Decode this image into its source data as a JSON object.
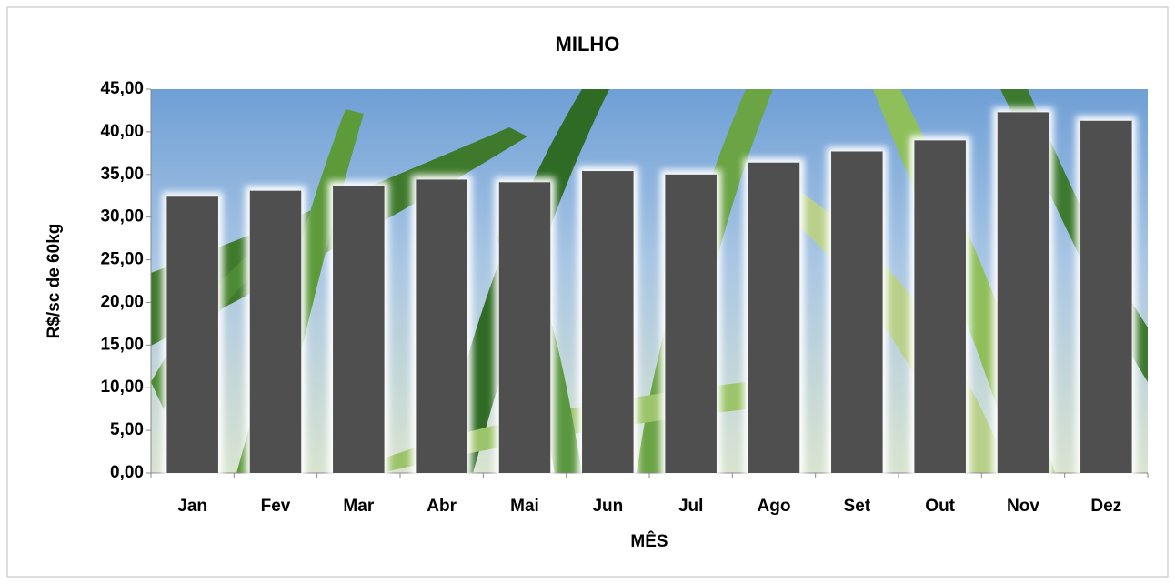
{
  "chart_data": {
    "type": "bar",
    "title": "MILHO",
    "x_label": "MÊS",
    "y_label": "R$/sc de 60kg",
    "categories": [
      "Jan",
      "Fev",
      "Mar",
      "Abr",
      "Mai",
      "Jun",
      "Jul",
      "Ago",
      "Set",
      "Out",
      "Nov",
      "Dez"
    ],
    "values": [
      32.4,
      33.1,
      33.7,
      34.4,
      34.1,
      35.4,
      35.0,
      36.4,
      37.7,
      39.0,
      42.3,
      41.3
    ],
    "color": "#4f4f4f",
    "ylim": [
      0,
      45
    ],
    "yticks": [
      {
        "value": 0,
        "label": "0,00"
      },
      {
        "value": 5,
        "label": "5,00"
      },
      {
        "value": 10,
        "label": "10,00"
      },
      {
        "value": 15,
        "label": "15,00"
      },
      {
        "value": 20,
        "label": "20,00"
      },
      {
        "value": 25,
        "label": "25,00"
      },
      {
        "value": 30,
        "label": "30,00"
      },
      {
        "value": 35,
        "label": "35,00"
      },
      {
        "value": 40,
        "label": "40,00"
      },
      {
        "value": 45,
        "label": "45,00"
      }
    ],
    "grid": false
  }
}
